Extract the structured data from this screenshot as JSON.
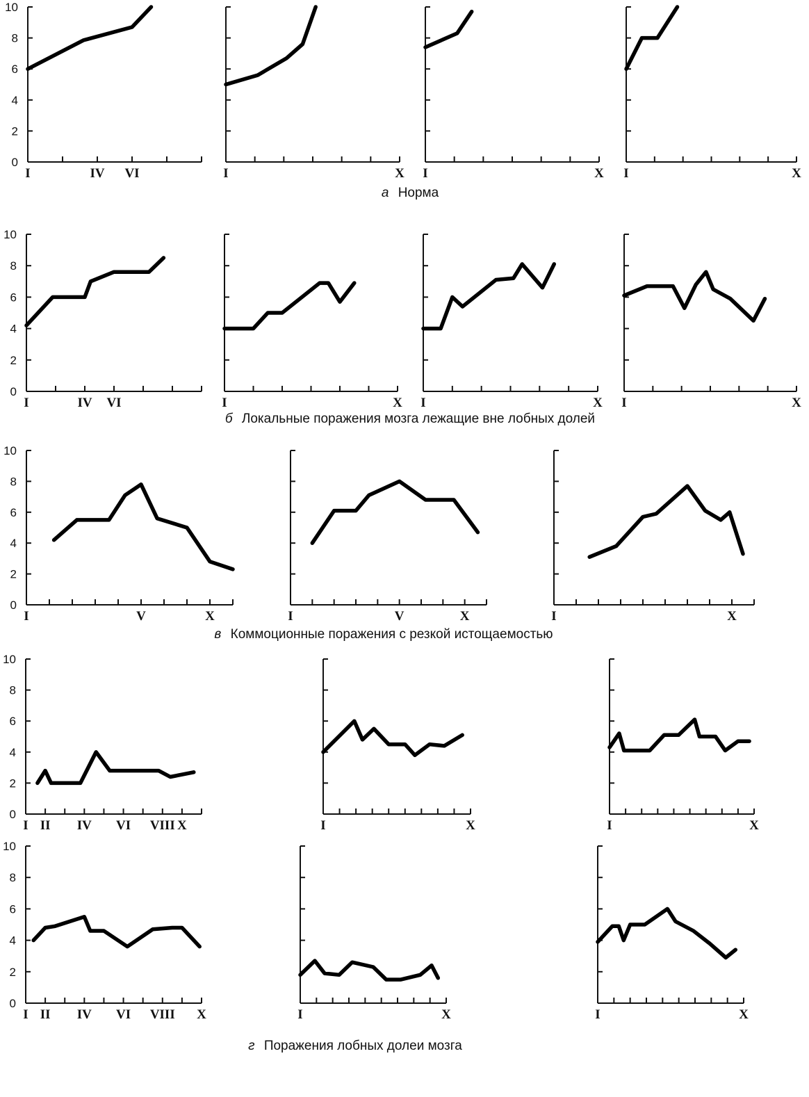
{
  "y_tick_labels": [
    "0",
    "2",
    "4",
    "6",
    "8",
    "10"
  ],
  "captions": {
    "a": {
      "letter": "а",
      "text": "Норма"
    },
    "b": {
      "letter": "б",
      "text": "Локальные поражения мозга  лежащие вне лобных долей"
    },
    "v": {
      "letter": "в",
      "text": "Коммоционные поражения с резкой истощаемостью"
    },
    "g": {
      "letter": "г",
      "text": "Поражения лобных долеи мозга"
    }
  },
  "chart_data": [
    {
      "id": "a1",
      "group": "a",
      "type": "line",
      "ylim": [
        0,
        10
      ],
      "xlim": [
        1,
        6
      ],
      "x_tick_labels": [
        {
          "x": 1,
          "label": "I"
        },
        {
          "x": 3,
          "label": "IV"
        },
        {
          "x": 4,
          "label": "VI"
        }
      ],
      "series": [
        {
          "x": [
            1,
            2.6,
            4,
            4.55
          ],
          "y": [
            6,
            7.85,
            8.7,
            10
          ]
        }
      ]
    },
    {
      "id": "a2",
      "group": "a",
      "type": "line",
      "ylim": [
        0,
        10
      ],
      "xlim": [
        1,
        7
      ],
      "x_tick_labels": [
        {
          "x": 1,
          "label": "I"
        },
        {
          "x": 7,
          "label": "X"
        }
      ],
      "series": [
        {
          "x": [
            1,
            2.1,
            3.1,
            3.65,
            4.1
          ],
          "y": [
            5,
            5.6,
            6.7,
            7.6,
            10
          ]
        }
      ]
    },
    {
      "id": "a3",
      "group": "a",
      "type": "line",
      "ylim": [
        0,
        10
      ],
      "xlim": [
        1,
        7
      ],
      "x_tick_labels": [
        {
          "x": 1,
          "label": "I"
        },
        {
          "x": 7,
          "label": "X"
        }
      ],
      "series": [
        {
          "x": [
            1,
            2.1,
            2.6
          ],
          "y": [
            7.4,
            8.3,
            9.7
          ]
        }
      ]
    },
    {
      "id": "a4",
      "group": "a",
      "type": "line",
      "ylim": [
        0,
        10
      ],
      "xlim": [
        1,
        7
      ],
      "x_tick_labels": [
        {
          "x": 1,
          "label": "I"
        },
        {
          "x": 7,
          "label": "X"
        }
      ],
      "series": [
        {
          "x": [
            1,
            1.55,
            2.1,
            2.8
          ],
          "y": [
            6,
            8,
            8,
            10
          ]
        }
      ]
    },
    {
      "id": "b1",
      "group": "b",
      "type": "line",
      "ylim": [
        0,
        10
      ],
      "xlim": [
        1,
        7
      ],
      "x_tick_labels": [
        {
          "x": 1,
          "label": "I"
        },
        {
          "x": 3,
          "label": "IV"
        },
        {
          "x": 4,
          "label": "VI"
        }
      ],
      "series": [
        {
          "x": [
            1,
            1.9,
            3,
            3.2,
            4,
            5.2,
            5.7
          ],
          "y": [
            4.2,
            6,
            6,
            7,
            7.6,
            7.6,
            8.5
          ]
        }
      ]
    },
    {
      "id": "b2",
      "group": "b",
      "type": "line",
      "ylim": [
        0,
        10
      ],
      "xlim": [
        1,
        7
      ],
      "x_tick_labels": [
        {
          "x": 1,
          "label": "I"
        },
        {
          "x": 7,
          "label": "X"
        }
      ],
      "series": [
        {
          "x": [
            1,
            2,
            2.5,
            3,
            4.3,
            4.6,
            5,
            5.5
          ],
          "y": [
            4,
            4,
            5,
            5,
            6.9,
            6.9,
            5.7,
            6.9
          ]
        }
      ]
    },
    {
      "id": "b3",
      "group": "b",
      "type": "line",
      "ylim": [
        0,
        10
      ],
      "xlim": [
        1,
        7
      ],
      "x_tick_labels": [
        {
          "x": 1,
          "label": "I"
        },
        {
          "x": 7,
          "label": "X"
        }
      ],
      "series": [
        {
          "x": [
            1,
            1.6,
            2,
            2.35,
            3.5,
            4.1,
            4.4,
            5.1,
            5.5
          ],
          "y": [
            4,
            4,
            6,
            5.4,
            7.1,
            7.2,
            8.1,
            6.6,
            8.1
          ]
        }
      ]
    },
    {
      "id": "b4",
      "group": "b",
      "type": "line",
      "ylim": [
        0,
        10
      ],
      "xlim": [
        1,
        7
      ],
      "x_tick_labels": [
        {
          "x": 1,
          "label": "I"
        },
        {
          "x": 7,
          "label": "X"
        }
      ],
      "series": [
        {
          "x": [
            1,
            1.8,
            2.7,
            3.1,
            3.5,
            3.85,
            4.1,
            4.7,
            5.5,
            5.9
          ],
          "y": [
            6.1,
            6.7,
            6.7,
            5.3,
            6.8,
            7.6,
            6.5,
            5.9,
            4.5,
            5.9
          ]
        }
      ]
    },
    {
      "id": "v1",
      "group": "v",
      "type": "line",
      "ylim": [
        0,
        10
      ],
      "xlim": [
        1,
        10
      ],
      "x_tick_labels": [
        {
          "x": 1,
          "label": "I"
        },
        {
          "x": 6,
          "label": "V"
        },
        {
          "x": 9,
          "label": "X"
        }
      ],
      "series": [
        {
          "x": [
            2.2,
            3.2,
            4.6,
            5.3,
            6.0,
            6.7,
            8.0,
            9.0,
            10.0
          ],
          "y": [
            4.2,
            5.5,
            5.5,
            7.1,
            7.8,
            5.6,
            5,
            2.8,
            2.3
          ]
        }
      ]
    },
    {
      "id": "v2",
      "group": "v",
      "type": "line",
      "ylim": [
        0,
        10
      ],
      "xlim": [
        1,
        10
      ],
      "x_tick_labels": [
        {
          "x": 1,
          "label": "I"
        },
        {
          "x": 6,
          "label": "V"
        },
        {
          "x": 9,
          "label": "X"
        }
      ],
      "series": [
        {
          "x": [
            2,
            3,
            4,
            4.6,
            6,
            7.2,
            8.5,
            9.6
          ],
          "y": [
            4,
            6.1,
            6.1,
            7.1,
            8,
            6.8,
            6.8,
            4.7
          ]
        }
      ]
    },
    {
      "id": "v3",
      "group": "v",
      "type": "line",
      "ylim": [
        0,
        10
      ],
      "xlim": [
        1,
        10
      ],
      "x_tick_labels": [
        {
          "x": 1,
          "label": "I"
        },
        {
          "x": 9,
          "label": "X"
        }
      ],
      "series": [
        {
          "x": [
            2.6,
            3.8,
            5,
            5.6,
            7.0,
            7.8,
            8.5,
            8.9,
            9.5
          ],
          "y": [
            3.1,
            3.8,
            5.7,
            5.9,
            7.7,
            6.1,
            5.5,
            6,
            3.3
          ]
        }
      ]
    },
    {
      "id": "g1",
      "group": "g",
      "type": "line",
      "ylim": [
        0,
        10
      ],
      "xlim": [
        1,
        10
      ],
      "x_tick_labels": [
        {
          "x": 1,
          "label": "I"
        },
        {
          "x": 2,
          "label": "II"
        },
        {
          "x": 4,
          "label": "IV"
        },
        {
          "x": 6,
          "label": "VI"
        },
        {
          "x": 8,
          "label": "VIII"
        },
        {
          "x": 9,
          "label": "X"
        }
      ],
      "series": [
        {
          "x": [
            1.6,
            2,
            2.3,
            3.8,
            4.6,
            5.3,
            7.8,
            8.4,
            9.6
          ],
          "y": [
            2,
            2.8,
            2,
            2,
            4,
            2.8,
            2.8,
            2.4,
            2.7
          ]
        }
      ]
    },
    {
      "id": "g2",
      "group": "g",
      "type": "line",
      "ylim": [
        0,
        10
      ],
      "xlim": [
        1,
        10
      ],
      "x_tick_labels": [
        {
          "x": 1,
          "label": "I"
        },
        {
          "x": 10,
          "label": "X"
        }
      ],
      "series": [
        {
          "x": [
            1,
            2.9,
            3.4,
            4.1,
            5,
            6,
            6.6,
            7.5,
            8.4,
            9.5
          ],
          "y": [
            4,
            6,
            4.8,
            5.5,
            4.5,
            4.5,
            3.8,
            4.5,
            4.4,
            5.1
          ]
        }
      ]
    },
    {
      "id": "g3",
      "group": "g",
      "type": "line",
      "ylim": [
        0,
        10
      ],
      "xlim": [
        1,
        10
      ],
      "x_tick_labels": [
        {
          "x": 1,
          "label": "I"
        },
        {
          "x": 10,
          "label": "X"
        }
      ],
      "series": [
        {
          "x": [
            1,
            1.6,
            1.9,
            3.5,
            4.4,
            5.3,
            6.3,
            6.6,
            7.6,
            8.2,
            9.0,
            9.7
          ],
          "y": [
            4.3,
            5.2,
            4.1,
            4.1,
            5.1,
            5.1,
            6.1,
            5,
            5,
            4.1,
            4.7,
            4.7
          ]
        }
      ]
    },
    {
      "id": "g4",
      "group": "g",
      "type": "line",
      "ylim": [
        0,
        10
      ],
      "xlim": [
        1,
        10
      ],
      "x_tick_labels": [
        {
          "x": 1,
          "label": "I"
        },
        {
          "x": 2,
          "label": "II"
        },
        {
          "x": 4,
          "label": "IV"
        },
        {
          "x": 6,
          "label": "VI"
        },
        {
          "x": 8,
          "label": "VIII"
        },
        {
          "x": 10,
          "label": "X"
        }
      ],
      "series": [
        {
          "x": [
            1.4,
            2,
            2.5,
            4,
            4.3,
            5,
            6.2,
            7.5,
            8.5,
            9.0,
            9.9
          ],
          "y": [
            4,
            4.8,
            4.9,
            5.5,
            4.6,
            4.6,
            3.6,
            4.7,
            4.8,
            4.8,
            3.6
          ]
        }
      ]
    },
    {
      "id": "g5",
      "group": "g",
      "type": "line",
      "ylim": [
        0,
        10
      ],
      "xlim": [
        1,
        10
      ],
      "x_tick_labels": [
        {
          "x": 1,
          "label": "I"
        },
        {
          "x": 10,
          "label": "X"
        }
      ],
      "series": [
        {
          "x": [
            1,
            1.9,
            2.5,
            3.4,
            4.2,
            5.5,
            6.3,
            7.2,
            8.4,
            9.1,
            9.5
          ],
          "y": [
            1.8,
            2.7,
            1.9,
            1.8,
            2.6,
            2.3,
            1.5,
            1.5,
            1.8,
            2.4,
            1.6
          ]
        }
      ]
    },
    {
      "id": "g6",
      "group": "g",
      "type": "line",
      "ylim": [
        0,
        10
      ],
      "xlim": [
        1,
        10
      ],
      "x_tick_labels": [
        {
          "x": 1,
          "label": "I"
        },
        {
          "x": 10,
          "label": "X"
        }
      ],
      "series": [
        {
          "x": [
            1,
            1.9,
            2.3,
            2.6,
            3.0,
            3.9,
            5.3,
            5.8,
            6.9,
            7.9,
            8.9,
            9.5
          ],
          "y": [
            3.9,
            4.9,
            4.9,
            4,
            5,
            5,
            6,
            5.2,
            4.6,
            3.8,
            2.9,
            3.4
          ]
        }
      ]
    }
  ]
}
